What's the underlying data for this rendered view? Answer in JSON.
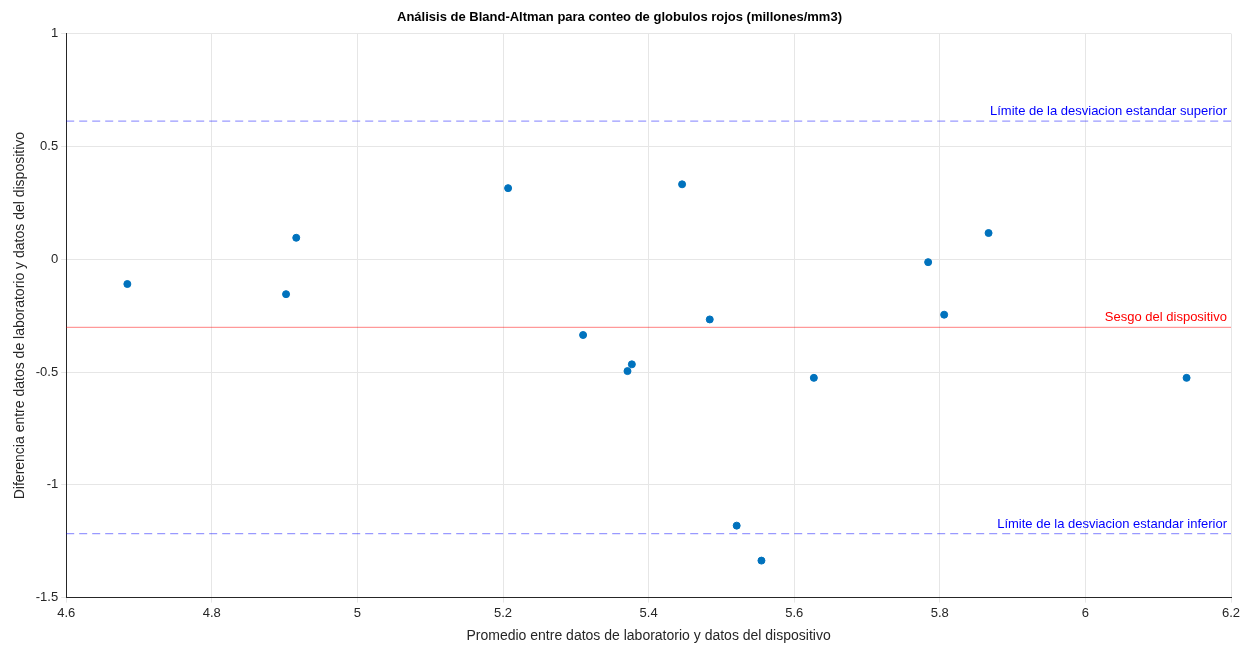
{
  "chart_data": {
    "type": "scatter",
    "title": "Análisis de Bland-Altman para conteo de globulos rojos (millones/mm3)",
    "xlabel": "Promedio entre datos de laboratorio y datos del dispositivo",
    "ylabel": "Diferencia entre datos de laboratorio y datos del dispositivo",
    "series": [
      {
        "color": "#0072bd",
        "x": [
          4.684,
          4.902,
          4.916,
          5.207,
          5.31,
          5.371,
          5.377,
          5.446,
          5.484,
          5.521,
          5.555,
          5.627,
          5.784,
          5.806,
          5.867,
          6.139
        ],
        "values": [
          -0.11,
          -0.155,
          0.095,
          0.315,
          -0.336,
          -0.496,
          -0.466,
          0.332,
          -0.267,
          -1.181,
          -1.336,
          -0.526,
          -0.013,
          -0.246,
          0.116,
          -0.526
        ]
      }
    ],
    "xlim": [
      4.6,
      6.2
    ],
    "xticks": [
      4.6,
      4.8,
      5,
      5.2,
      5.4,
      5.6,
      5.8,
      6,
      6.2
    ],
    "ylim": [
      -1.5,
      1
    ],
    "yticks": [
      -1.5,
      -1,
      -0.5,
      0,
      0.5,
      1
    ],
    "grid": true,
    "marker": "circle",
    "ref_lines": [
      {
        "axis": "y",
        "value": 0.612,
        "label": "Límite de la desviacion estandar superior",
        "color": "#0000ff",
        "line_style": "dashed"
      },
      {
        "axis": "y",
        "value": -0.302,
        "label": "Sesgo del dispositivo",
        "color": "#ff0000",
        "line_style": "solid"
      },
      {
        "axis": "y",
        "value": -1.216,
        "label": "Límite de la desviacion estandar inferior",
        "color": "#0000ff",
        "line_style": "dashed"
      }
    ]
  }
}
